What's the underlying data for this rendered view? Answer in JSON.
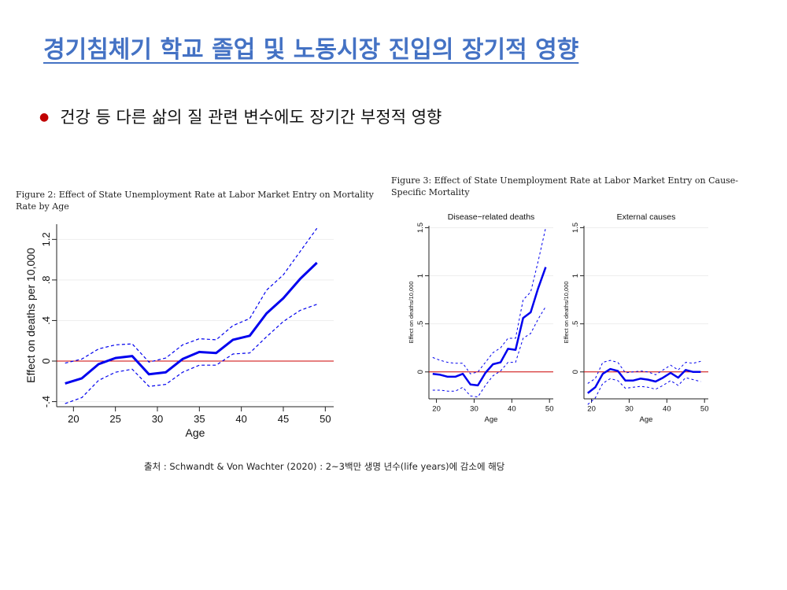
{
  "slide": {
    "title": "경기침체기 학교 졸업 및 노동시장 진입의 장기적 영향",
    "bullet": "건강 등 다른 삶의 질 관련 변수에도 장기간 부정적 영향",
    "source": "출처 : Schwandt & Von Wachter (2020) : 2~3백만 생명 년수(life years)에 감소에 해당"
  },
  "figures": {
    "fig2_caption": "Figure 2: Effect of State Unemployment Rate at Labor Market Entry on Mortality Rate by Age",
    "fig3_caption": "Figure 3: Effect of State Unemployment Rate at Labor Market Entry on Cause-Specific Mortality"
  },
  "colors": {
    "title": "#4472c4",
    "line": "#0000ee",
    "zero": "#cc0000",
    "bullet": "#c00000"
  },
  "chart_data": [
    {
      "type": "line",
      "title": "",
      "xlabel": "Age",
      "ylabel": "Effect on deaths per 10,000",
      "xlim": [
        18,
        51
      ],
      "ylim": [
        -0.45,
        1.35
      ],
      "xticks": [
        20,
        25,
        30,
        35,
        40,
        45,
        50
      ],
      "yticks": [
        -0.4,
        0,
        0.4,
        0.8,
        1.2
      ],
      "ytick_labels": [
        "-.4",
        "0",
        ".4",
        ".8",
        "1.2"
      ],
      "x": [
        19,
        21,
        23,
        25,
        27,
        29,
        31,
        33,
        35,
        37,
        39,
        41,
        43,
        45,
        47,
        49
      ],
      "series": [
        {
          "name": "estimate",
          "values": [
            -0.22,
            -0.17,
            -0.03,
            0.03,
            0.05,
            -0.13,
            -0.11,
            0.02,
            0.09,
            0.08,
            0.21,
            0.25,
            0.47,
            0.62,
            0.81,
            0.97
          ]
        },
        {
          "name": "upper",
          "values": [
            -0.02,
            0.02,
            0.12,
            0.16,
            0.17,
            -0.01,
            0.03,
            0.16,
            0.22,
            0.21,
            0.35,
            0.42,
            0.7,
            0.85,
            1.08,
            1.31
          ]
        },
        {
          "name": "lower",
          "values": [
            -0.42,
            -0.36,
            -0.19,
            -0.11,
            -0.08,
            -0.25,
            -0.23,
            -0.11,
            -0.04,
            -0.04,
            0.07,
            0.08,
            0.24,
            0.39,
            0.5,
            0.56
          ]
        }
      ]
    },
    {
      "type": "line",
      "title": "Disease−related deaths",
      "xlabel": "Age",
      "ylabel": "Effect on deaths/10,000",
      "xlim": [
        18,
        51
      ],
      "ylim": [
        -0.28,
        1.52
      ],
      "xticks": [
        20,
        30,
        40,
        50
      ],
      "yticks": [
        0,
        0.5,
        1,
        1.5
      ],
      "ytick_labels": [
        "0",
        ".5",
        "1",
        "1.5"
      ],
      "x": [
        19,
        21,
        23,
        25,
        27,
        29,
        31,
        33,
        35,
        37,
        39,
        41,
        43,
        45,
        47,
        49
      ],
      "series": [
        {
          "name": "estimate",
          "values": [
            -0.02,
            -0.03,
            -0.05,
            -0.05,
            -0.02,
            -0.13,
            -0.14,
            -0.01,
            0.08,
            0.1,
            0.24,
            0.23,
            0.56,
            0.62,
            0.87,
            1.09
          ]
        },
        {
          "name": "upper",
          "values": [
            0.15,
            0.12,
            0.1,
            0.09,
            0.09,
            -0.02,
            0.0,
            0.1,
            0.2,
            0.25,
            0.35,
            0.35,
            0.75,
            0.83,
            1.15,
            1.5
          ]
        },
        {
          "name": "lower",
          "values": [
            -0.19,
            -0.19,
            -0.2,
            -0.2,
            -0.16,
            -0.25,
            -0.26,
            -0.14,
            -0.04,
            0.01,
            0.1,
            0.1,
            0.35,
            0.4,
            0.55,
            0.68
          ]
        }
      ]
    },
    {
      "type": "line",
      "title": "External causes",
      "xlabel": "Age",
      "ylabel": "Effect on deaths/10,000",
      "xlim": [
        18,
        51
      ],
      "ylim": [
        -0.28,
        1.52
      ],
      "xticks": [
        20,
        30,
        40,
        50
      ],
      "yticks": [
        0,
        0.5,
        1,
        1.5
      ],
      "ytick_labels": [
        "0",
        ".5",
        "1",
        "1.5"
      ],
      "x": [
        19,
        21,
        23,
        25,
        27,
        29,
        31,
        33,
        35,
        37,
        39,
        41,
        43,
        45,
        47,
        49
      ],
      "series": [
        {
          "name": "estimate",
          "values": [
            -0.22,
            -0.16,
            -0.02,
            0.03,
            0.01,
            -0.09,
            -0.09,
            -0.07,
            -0.08,
            -0.1,
            -0.06,
            -0.01,
            -0.06,
            0.02,
            0.0,
            0.0
          ]
        },
        {
          "name": "upper",
          "values": [
            -0.12,
            -0.07,
            0.1,
            0.12,
            0.1,
            -0.01,
            0.0,
            0.01,
            0.0,
            -0.03,
            0.02,
            0.07,
            0.02,
            0.1,
            0.09,
            0.11
          ]
        },
        {
          "name": "lower",
          "values": [
            -0.34,
            -0.27,
            -0.12,
            -0.07,
            -0.09,
            -0.17,
            -0.16,
            -0.15,
            -0.16,
            -0.18,
            -0.14,
            -0.09,
            -0.14,
            -0.06,
            -0.08,
            -0.1
          ]
        }
      ]
    }
  ]
}
